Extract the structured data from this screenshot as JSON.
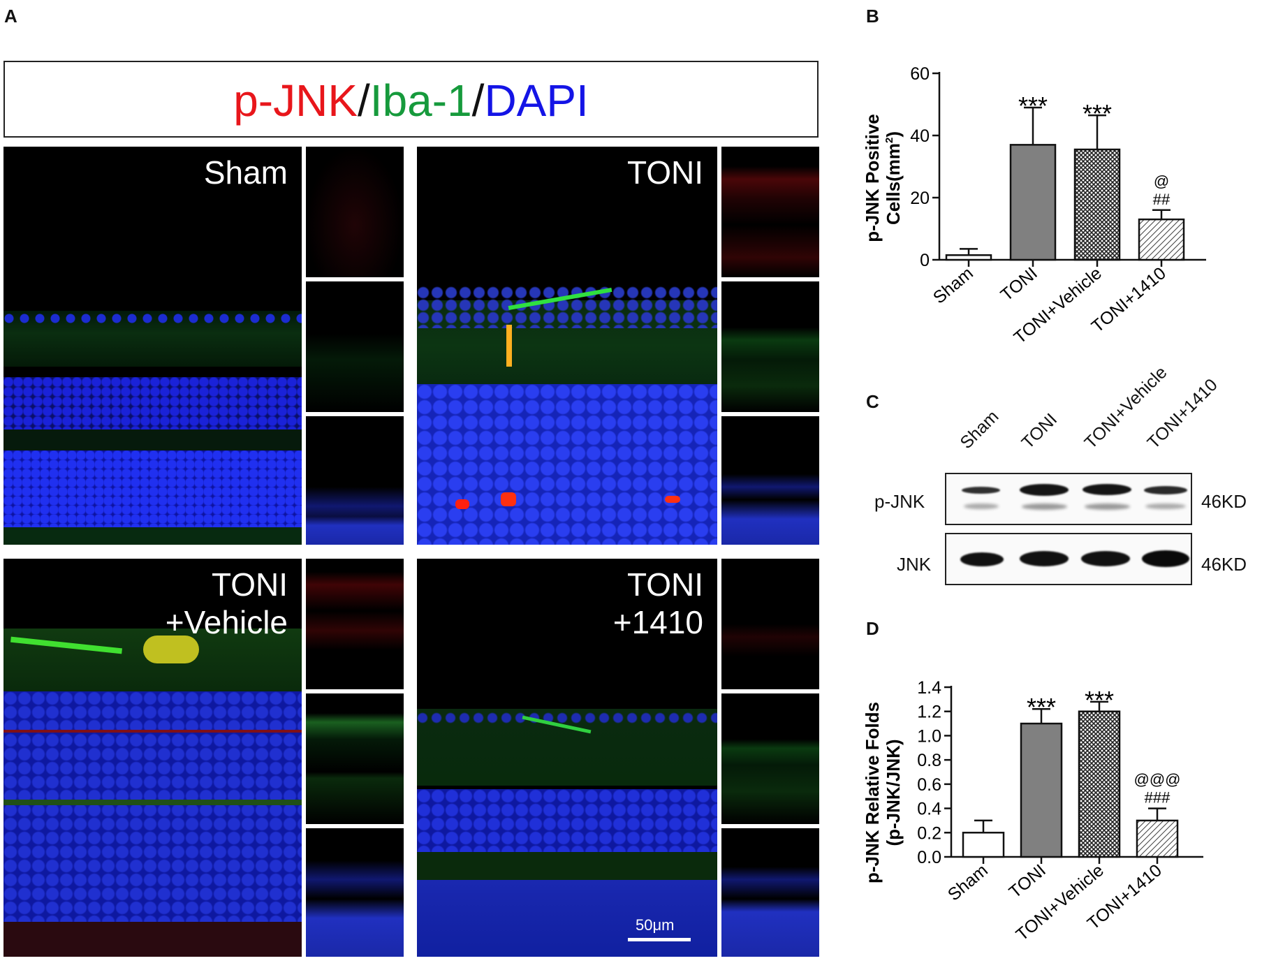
{
  "panels": {
    "a": "A",
    "b": "B",
    "c": "C",
    "d": "D"
  },
  "legend": {
    "part1": "p-JNK",
    "sep1": "/",
    "part2": "Iba-1",
    "sep2": "/",
    "part3": "DAPI",
    "colors": {
      "pjnk": "#e8161b",
      "iba": "#169a3c",
      "dapi": "#1414e6",
      "sep": "#111111"
    }
  },
  "micrographs": [
    {
      "label_line1": "Sham",
      "label_line2": ""
    },
    {
      "label_line1": "TONI",
      "label_line2": ""
    },
    {
      "label_line1": "TONI",
      "label_line2": "+Vehicle"
    },
    {
      "label_line1": "TONI",
      "label_line2": "+1410"
    }
  ],
  "scale_bar": "50μm",
  "western_blot": {
    "lanes": [
      "Sham",
      "TONI",
      "TONI+Vehicle",
      "TONI+1410"
    ],
    "rows": [
      {
        "label": "p-JNK",
        "size": "46KD"
      },
      {
        "label": "JNK",
        "size": "46KD"
      }
    ]
  },
  "chart_data": [
    {
      "type": "bar",
      "ylabel_line1": "p-JNK Positive",
      "ylabel_line2": "Cells(mm",
      "ylabel_sup": "2",
      "ylabel_close": ")",
      "categories": [
        "Sham",
        "TONI",
        "TONI+Vehicle",
        "TONI+1410"
      ],
      "values": [
        1.5,
        37,
        35.5,
        13
      ],
      "errors": [
        2,
        12,
        11,
        3
      ],
      "ylim": [
        0,
        60
      ],
      "yticks": [
        "0",
        "20",
        "40",
        "60"
      ],
      "ytick_values": [
        0,
        20,
        40,
        60
      ],
      "annotations": [
        {
          "index": 1,
          "lines": [
            "***"
          ]
        },
        {
          "index": 2,
          "lines": [
            "***"
          ]
        },
        {
          "index": 3,
          "lines": [
            "@",
            "##"
          ]
        }
      ],
      "fills": [
        "white",
        "gray",
        "crosshatch",
        "diagonal"
      ]
    },
    {
      "type": "bar",
      "ylabel_line1": "p-JNK Relative Folds",
      "ylabel_line2": "(p-JNK/JNK)",
      "categories": [
        "Sham",
        "TONI",
        "TONI+Vehicle",
        "TONI+1410"
      ],
      "values": [
        0.2,
        1.1,
        1.2,
        0.3
      ],
      "errors": [
        0.1,
        0.12,
        0.08,
        0.1
      ],
      "ylim": [
        0,
        1.4
      ],
      "yticks": [
        "0.0",
        "0.2",
        "0.4",
        "0.6",
        "0.8",
        "1.0",
        "1.2",
        "1.4"
      ],
      "ytick_values": [
        0,
        0.2,
        0.4,
        0.6,
        0.8,
        1.0,
        1.2,
        1.4
      ],
      "annotations": [
        {
          "index": 1,
          "lines": [
            "***"
          ]
        },
        {
          "index": 2,
          "lines": [
            "***"
          ]
        },
        {
          "index": 3,
          "lines": [
            "@@@",
            "###"
          ]
        }
      ],
      "fills": [
        "white",
        "gray",
        "crosshatch",
        "diagonal"
      ]
    }
  ]
}
